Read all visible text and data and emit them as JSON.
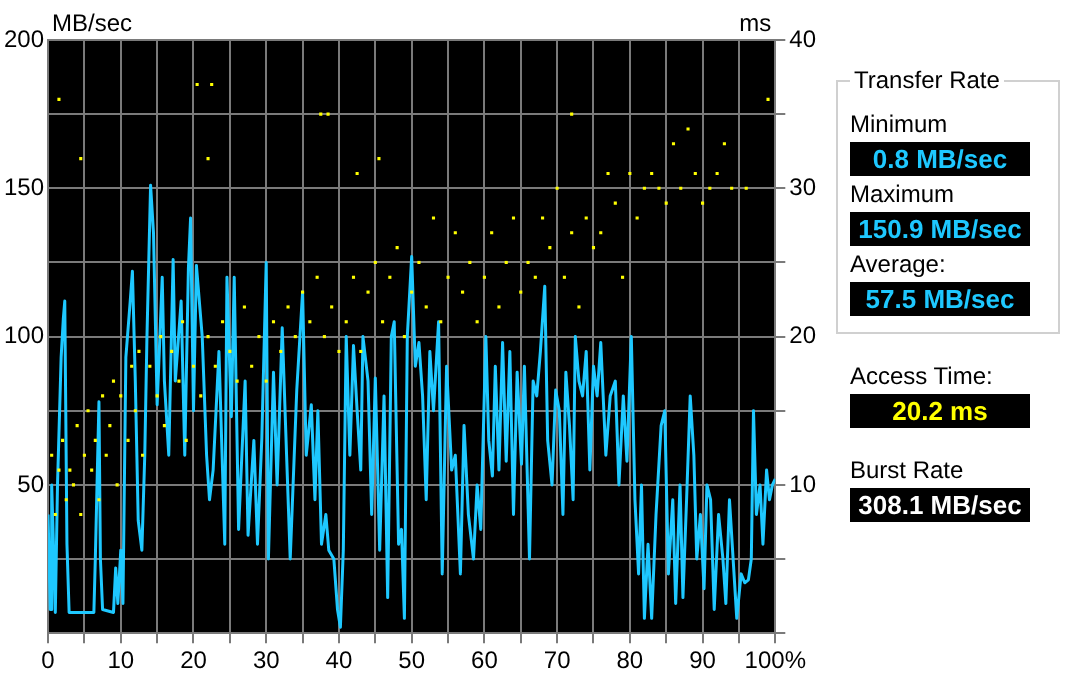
{
  "chart_data": [
    {
      "type": "line",
      "ylabel": "MB/sec",
      "y2label": "ms",
      "grid": true,
      "xlim": [
        0,
        100
      ],
      "xticks": [
        0,
        {
          "value": 5,
          "label": null
        },
        10,
        {
          "value": 15,
          "label": null
        },
        20,
        {
          "value": 25,
          "label": null
        },
        30,
        {
          "value": 35,
          "label": null
        },
        40,
        {
          "value": 45,
          "label": null
        },
        50,
        {
          "value": 55,
          "label": null
        },
        60,
        {
          "value": 65,
          "label": null
        },
        70,
        {
          "value": 75,
          "label": null
        },
        80,
        {
          "value": 85,
          "label": null
        },
        90,
        {
          "value": 95,
          "label": null
        },
        {
          "value": 100,
          "label": "100%"
        }
      ],
      "ylim": [
        0,
        200
      ],
      "yticks": [
        {
          "value": 0,
          "label": null
        },
        {
          "value": 25,
          "label": null
        },
        50,
        {
          "value": 75,
          "label": null
        },
        100,
        {
          "value": 125,
          "label": null
        },
        150,
        {
          "value": 175,
          "label": null
        },
        200
      ],
      "y2lim": [
        0,
        40
      ],
      "y2ticks": [
        {
          "value": 0,
          "label": null
        },
        {
          "value": 5,
          "label": null
        },
        10,
        {
          "value": 15,
          "label": null
        },
        20,
        {
          "value": 25,
          "label": null
        },
        30,
        {
          "value": 35,
          "label": null
        },
        40
      ],
      "series": [
        {
          "type": "line",
          "color": "#1ec8ff",
          "marker": "none",
          "x": [
            0,
            0.3,
            0.5,
            0.8,
            1.0,
            1.3,
            1.8,
            2.1,
            2.3,
            2.6,
            2.9,
            3.2,
            5,
            6.3,
            6.5,
            7.0,
            7.2,
            7.5,
            9,
            9.3,
            9.6,
            10.0,
            10.3,
            10.7,
            11.3,
            11.6,
            12.0,
            12.4,
            12.9,
            13.3,
            13.6,
            14.1,
            14.5,
            15.0,
            15.3,
            15.7,
            16.0,
            16.6,
            17.2,
            17.5,
            18.3,
            18.8,
            19.3,
            19.6,
            20.0,
            20.4,
            21.2,
            21.8,
            22.2,
            22.7,
            23.5,
            24.3,
            24.6,
            25.2,
            25.6,
            26.2,
            27.1,
            27.5,
            28.3,
            28.8,
            29.4,
            30.0,
            30.3,
            31.0,
            31.5,
            32.2,
            32.8,
            33.3,
            34.2,
            35.0,
            35.5,
            36.2,
            36.7,
            37.1,
            37.6,
            38.2,
            38.6,
            39.3,
            39.8,
            40.2,
            40.6,
            41.0,
            41.5,
            42.0,
            42.5,
            43.0,
            43.3,
            44.0,
            44.5,
            45.0,
            45.6,
            46.2,
            46.7,
            47.2,
            47.6,
            48.2,
            48.6,
            49.0,
            49.4,
            50.0,
            50.5,
            51.0,
            51.5,
            52.0,
            52.5,
            53.0,
            53.7,
            54.2,
            54.8,
            55.5,
            56.0,
            56.7,
            57.2,
            57.8,
            58.5,
            59.0,
            59.5,
            60.2,
            60.6,
            61.1,
            61.5,
            62.0,
            62.5,
            63.0,
            63.5,
            64.0,
            64.5,
            65.1,
            65.5,
            66.2,
            66.7,
            67.2,
            67.7,
            68.3,
            68.7,
            69.3,
            69.8,
            70.3,
            70.8,
            71.2,
            71.7,
            72.2,
            72.5,
            73.0,
            73.5,
            74.0,
            74.5,
            75.0,
            75.5,
            76.0,
            76.7,
            77.3,
            78.0,
            78.5,
            79.1,
            79.6,
            80.2,
            80.7,
            81.2,
            81.6,
            82.0,
            82.5,
            83.0,
            83.6,
            84.3,
            84.8,
            85.3,
            85.9,
            86.3,
            86.9,
            87.3,
            87.8,
            88.3,
            88.8,
            89.2,
            89.7,
            90.2,
            90.6,
            91.1,
            91.6,
            92.2,
            92.8,
            93.2,
            93.7,
            94.2,
            94.7,
            95.3,
            95.8,
            96.3,
            96.7,
            97.0,
            97.4,
            97.9,
            98.3,
            98.8,
            99.2,
            99.6,
            100
          ],
          "values": [
            40,
            8,
            50,
            25,
            7,
            50,
            93,
            106,
            112,
            30,
            7,
            7,
            7,
            7,
            25,
            78,
            25,
            8,
            7,
            22,
            10,
            28,
            10,
            93,
            112,
            122,
            85,
            38,
            28,
            60,
            100,
            151,
            135,
            77,
            95,
            120,
            85,
            60,
            126,
            85,
            112,
            60,
            123,
            140,
            75,
            124,
            100,
            60,
            45,
            55,
            95,
            30,
            120,
            73,
            120,
            35,
            85,
            33,
            65,
            30,
            66,
            125,
            25,
            88,
            50,
            103,
            60,
            25,
            82,
            115,
            60,
            77,
            45,
            75,
            30,
            40,
            28,
            25,
            8,
            2,
            28,
            100,
            60,
            97,
            75,
            55,
            100,
            85,
            40,
            86,
            28,
            80,
            12,
            100,
            105,
            30,
            35,
            5,
            100,
            127,
            90,
            98,
            80,
            45,
            95,
            75,
            105,
            20,
            90,
            55,
            60,
            20,
            70,
            40,
            25,
            50,
            35,
            100,
            65,
            53,
            90,
            55,
            98,
            58,
            95,
            40,
            88,
            57,
            90,
            25,
            85,
            80,
            95,
            117,
            65,
            50,
            82,
            75,
            40,
            88,
            70,
            45,
            100,
            85,
            80,
            95,
            55,
            90,
            80,
            98,
            60,
            80,
            85,
            50,
            80,
            58,
            100,
            45,
            20,
            50,
            5,
            30,
            5,
            40,
            70,
            75,
            20,
            45,
            10,
            50,
            12,
            45,
            80,
            60,
            25,
            40,
            15,
            50,
            45,
            8,
            40,
            25,
            10,
            45,
            25,
            5,
            20,
            17,
            18,
            25,
            75,
            40,
            50,
            30,
            55,
            45,
            50,
            52
          ]
        },
        {
          "type": "scatter",
          "axis": "y2",
          "color": "#ffff00",
          "marker": "square",
          "x": [
            0.5,
            1,
            1.5,
            2,
            2.5,
            3,
            3.5,
            4,
            4.5,
            5,
            5.5,
            6,
            6.5,
            7,
            7.5,
            8,
            8.5,
            9,
            9.5,
            10,
            11,
            11.5,
            12,
            12.5,
            13,
            14,
            15,
            15.5,
            16,
            17,
            18,
            18.5,
            19,
            20,
            21,
            22,
            23,
            24,
            25,
            26,
            27,
            28,
            29,
            30,
            31,
            32,
            33,
            34,
            35,
            36,
            37,
            38,
            39,
            40,
            41,
            42,
            43,
            44,
            45,
            46,
            47,
            48,
            49,
            50,
            51,
            52,
            53,
            54,
            55,
            56,
            57,
            58,
            59,
            60,
            61,
            62,
            63,
            64,
            65,
            66,
            67,
            68,
            69,
            70,
            71,
            72,
            73,
            74,
            75,
            76,
            77,
            78,
            79,
            80,
            81,
            82,
            83,
            84,
            85,
            86,
            87,
            88,
            89,
            90,
            91,
            92,
            93,
            94,
            96,
            99,
            1.5,
            4.5,
            20.5,
            22,
            22.5,
            37.5,
            38.5,
            42.5,
            45.5,
            72
          ],
          "values": [
            12,
            8,
            11,
            13,
            9,
            11,
            10,
            14,
            8,
            12,
            15,
            11,
            13,
            9,
            16,
            12,
            14,
            17,
            10,
            16,
            13,
            18,
            15,
            19,
            12,
            18,
            16,
            20,
            14,
            19,
            17,
            21,
            13,
            18,
            16,
            20,
            18,
            21,
            19,
            17,
            22,
            18,
            20,
            17,
            21,
            19,
            22,
            20,
            23,
            21,
            24,
            20,
            22,
            19,
            21,
            24,
            19,
            23,
            25,
            21,
            24,
            26,
            20,
            23,
            25,
            22,
            28,
            21,
            24,
            27,
            23,
            25,
            21,
            24,
            27,
            22,
            25,
            28,
            23,
            25,
            24,
            28,
            26,
            30,
            24,
            27,
            22,
            28,
            26,
            27,
            31,
            29,
            24,
            31,
            28,
            30,
            31,
            30,
            29,
            33,
            30,
            34,
            31,
            29,
            30,
            31,
            33,
            30,
            30,
            36,
            36,
            32,
            37,
            32,
            37,
            35,
            35,
            31,
            32,
            35
          ]
        }
      ]
    },
    {
      "type": "other",
      "title": "Transfer Rate",
      "annotations": [
        "Minimum",
        "0.8 MB/sec",
        "Maximum",
        "150.9 MB/sec",
        "Average:",
        "57.5 MB/sec",
        "Access Time:",
        "20.2 ms",
        "Burst Rate",
        "308.1 MB/sec"
      ]
    }
  ]
}
